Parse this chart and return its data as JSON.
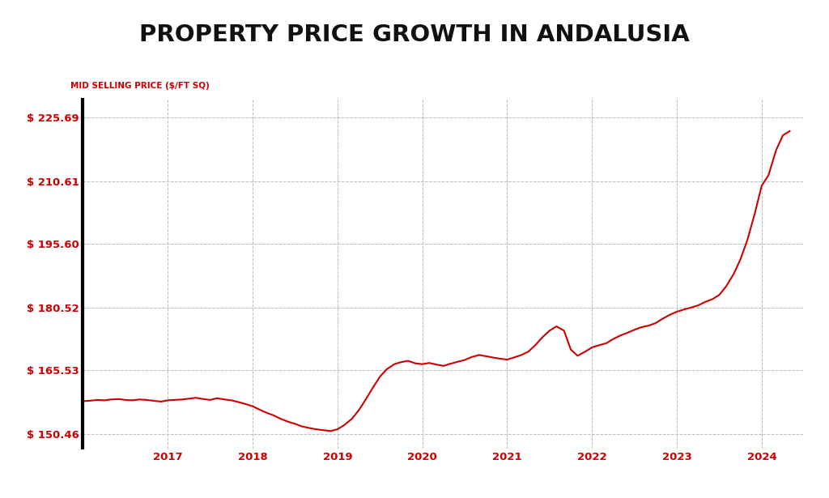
{
  "title": "PROPERTY PRICE GROWTH IN ANDALUSIA",
  "ylabel": "MID SELLING PRICE ($/FT SQ)",
  "background_color": "#ffffff",
  "line_color": "#cc0000",
  "axis_color": "#000000",
  "grid_color": "#bbbbbb",
  "title_color": "#111111",
  "label_color": "#cc0000",
  "ytick_labels": [
    "$ 150.46",
    "$ 165.53",
    "$ 180.52",
    "$ 195.60",
    "$ 210.61",
    "$ 225.69"
  ],
  "ytick_values": [
    150.46,
    165.53,
    180.52,
    195.6,
    210.61,
    225.69
  ],
  "xtick_labels": [
    "2017",
    "2018",
    "2019",
    "2020",
    "2021",
    "2022",
    "2023",
    "2024"
  ],
  "xtick_positions": [
    2017,
    2018,
    2019,
    2020,
    2021,
    2022,
    2023,
    2024
  ],
  "xlim_start": 2016.0,
  "xlim_end": 2024.5,
  "ylim_min": 147.0,
  "ylim_max": 230.0,
  "x": [
    2016.0,
    2016.08,
    2016.17,
    2016.25,
    2016.33,
    2016.42,
    2016.5,
    2016.58,
    2016.67,
    2016.75,
    2016.83,
    2016.92,
    2017.0,
    2017.08,
    2017.17,
    2017.25,
    2017.33,
    2017.42,
    2017.5,
    2017.58,
    2017.67,
    2017.75,
    2017.83,
    2017.92,
    2018.0,
    2018.08,
    2018.17,
    2018.25,
    2018.33,
    2018.42,
    2018.5,
    2018.58,
    2018.67,
    2018.75,
    2018.83,
    2018.92,
    2019.0,
    2019.08,
    2019.17,
    2019.25,
    2019.33,
    2019.42,
    2019.5,
    2019.58,
    2019.67,
    2019.75,
    2019.83,
    2019.92,
    2020.0,
    2020.08,
    2020.17,
    2020.25,
    2020.33,
    2020.42,
    2020.5,
    2020.58,
    2020.67,
    2020.75,
    2020.83,
    2020.92,
    2021.0,
    2021.08,
    2021.17,
    2021.25,
    2021.33,
    2021.42,
    2021.5,
    2021.58,
    2021.67,
    2021.75,
    2021.83,
    2021.92,
    2022.0,
    2022.08,
    2022.17,
    2022.25,
    2022.33,
    2022.42,
    2022.5,
    2022.58,
    2022.67,
    2022.75,
    2022.83,
    2022.92,
    2023.0,
    2023.08,
    2023.17,
    2023.25,
    2023.33,
    2023.42,
    2023.5,
    2023.58,
    2023.67,
    2023.75,
    2023.83,
    2023.92,
    2024.0,
    2024.08,
    2024.17,
    2024.25,
    2024.33
  ],
  "y": [
    158.2,
    158.3,
    158.5,
    158.4,
    158.6,
    158.7,
    158.5,
    158.4,
    158.6,
    158.5,
    158.3,
    158.1,
    158.4,
    158.5,
    158.6,
    158.8,
    159.0,
    158.7,
    158.5,
    158.9,
    158.6,
    158.4,
    158.0,
    157.5,
    157.0,
    156.2,
    155.4,
    154.8,
    154.0,
    153.3,
    152.8,
    152.2,
    151.8,
    151.5,
    151.3,
    151.1,
    151.5,
    152.5,
    154.0,
    156.0,
    158.5,
    161.5,
    164.0,
    165.8,
    167.0,
    167.5,
    167.8,
    167.2,
    167.0,
    167.3,
    166.9,
    166.6,
    167.1,
    167.6,
    168.0,
    168.7,
    169.2,
    168.9,
    168.6,
    168.3,
    168.1,
    168.6,
    169.2,
    170.0,
    171.5,
    173.5,
    175.0,
    176.0,
    175.0,
    170.5,
    169.0,
    170.0,
    171.0,
    171.5,
    172.0,
    173.0,
    173.8,
    174.5,
    175.2,
    175.8,
    176.2,
    176.8,
    177.8,
    178.8,
    179.5,
    180.0,
    180.5,
    181.0,
    181.8,
    182.5,
    183.5,
    185.5,
    188.5,
    192.0,
    196.5,
    203.0,
    209.5,
    212.0,
    218.0,
    221.5,
    222.5
  ]
}
